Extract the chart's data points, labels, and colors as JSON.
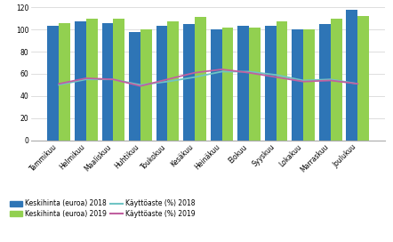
{
  "months": [
    "Tammikuu",
    "Helmikuu",
    "Maaliskuu",
    "Huhtikuu",
    "Toukokuu",
    "Kesäkuu",
    "Heinäkuu",
    "Elokuu",
    "Syyskuu",
    "Lokakuu",
    "Marraskuu",
    "Joulukuu"
  ],
  "keskihinta_2018": [
    103,
    107,
    106,
    98,
    103,
    105,
    100,
    103,
    103,
    100,
    105,
    118
  ],
  "keskihinta_2019": [
    106,
    110,
    110,
    100,
    107,
    111,
    102,
    102,
    107,
    100,
    110,
    112
  ],
  "kayttoaste_2018": [
    50,
    55,
    55,
    50,
    53,
    57,
    62,
    62,
    59,
    54,
    55,
    51
  ],
  "kayttoaste_2019": [
    51,
    56,
    55,
    49,
    55,
    61,
    64,
    61,
    57,
    53,
    54,
    51
  ],
  "bar_color_2018": "#2e75b6",
  "bar_color_2019": "#92d050",
  "line_color_2018": "#70c4c4",
  "line_color_2019": "#c060a0",
  "ylim": [
    0,
    120
  ],
  "yticks": [
    0,
    20,
    40,
    60,
    80,
    100,
    120
  ],
  "legend_labels": [
    "Keskihinta (euroa) 2018",
    "Keskihinta (euroa) 2019",
    "Käyttöaste (%) 2018",
    "Käyttöaste (%) 2019"
  ],
  "bar_width": 0.42,
  "figsize": [
    4.42,
    2.72
  ],
  "dpi": 100,
  "background_color": "#ffffff",
  "grid_color": "#d0d0d0",
  "tick_fontsize": 5.5,
  "legend_fontsize": 5.5
}
